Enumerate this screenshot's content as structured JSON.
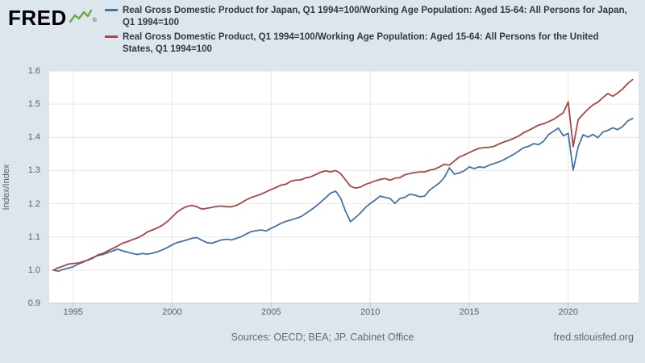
{
  "brand": {
    "logo_text": "FRED",
    "registered": "®"
  },
  "legend": [
    {
      "label": "Real Gross Domestic Product for Japan, Q1 1994=100/Working Age Population: Aged 15-64: All Persons for Japan, Q1 1994=100",
      "color": "#4572a7"
    },
    {
      "label": "Real Gross Domestic Product, Q1 1994=100/Working Age Population: Aged 15-64: All Persons for the United States, Q1 1994=100",
      "color": "#aa4643"
    }
  ],
  "footer": {
    "sources": "Sources: OECD; BEA; JP. Cabinet Office",
    "site": "fred.stlouisfed.org"
  },
  "colors": {
    "background": "#dde5ed",
    "plot_background": "#ffffff",
    "grid": "#e4e7ea",
    "axis": "#c0c8cf",
    "japan_line": "#4572a7",
    "us_line": "#aa4643",
    "logo_spark": "#6aaa43"
  },
  "chart_data": {
    "type": "line",
    "title": "",
    "xlabel": "",
    "ylabel": "Index/Index",
    "grid": true,
    "legend_position": "top",
    "xlim": [
      1993.75,
      2023.55
    ],
    "ylim": [
      0.9,
      1.6
    ],
    "x_start": 1994.0,
    "x_step": 0.25,
    "xticks": [
      1995,
      2000,
      2005,
      2010,
      2015,
      2020
    ],
    "xtick_labels": [
      "1995",
      "2000",
      "2005",
      "2010",
      "2015",
      "2020"
    ],
    "yticks": [
      0.9,
      1.0,
      1.1,
      1.2,
      1.3,
      1.4,
      1.5,
      1.6
    ],
    "ytick_labels": [
      "0.9",
      "1.0",
      "1.1",
      "1.2",
      "1.3",
      "1.4",
      "1.5",
      "1.6"
    ],
    "series": [
      {
        "id": "japan",
        "name": "Japan (Real GDP / Working Age Population, Q1 1994=100)",
        "color": "#4572a7",
        "values": [
          1.0,
          0.997,
          1.002,
          1.006,
          1.01,
          1.018,
          1.024,
          1.031,
          1.038,
          1.044,
          1.047,
          1.053,
          1.058,
          1.063,
          1.058,
          1.054,
          1.05,
          1.047,
          1.05,
          1.048,
          1.051,
          1.055,
          1.061,
          1.068,
          1.076,
          1.083,
          1.087,
          1.091,
          1.096,
          1.098,
          1.09,
          1.083,
          1.081,
          1.086,
          1.091,
          1.093,
          1.091,
          1.096,
          1.101,
          1.109,
          1.116,
          1.119,
          1.121,
          1.118,
          1.126,
          1.133,
          1.141,
          1.147,
          1.151,
          1.156,
          1.161,
          1.171,
          1.181,
          1.192,
          1.205,
          1.218,
          1.232,
          1.238,
          1.218,
          1.178,
          1.146,
          1.158,
          1.172,
          1.188,
          1.201,
          1.211,
          1.223,
          1.219,
          1.216,
          1.201,
          1.216,
          1.219,
          1.229,
          1.226,
          1.221,
          1.223,
          1.241,
          1.252,
          1.263,
          1.28,
          1.308,
          1.289,
          1.293,
          1.299,
          1.311,
          1.306,
          1.311,
          1.309,
          1.316,
          1.321,
          1.326,
          1.333,
          1.341,
          1.349,
          1.359,
          1.369,
          1.373,
          1.381,
          1.378,
          1.388,
          1.408,
          1.418,
          1.428,
          1.405,
          1.412,
          1.301,
          1.372,
          1.408,
          1.401,
          1.409,
          1.399,
          1.416,
          1.421,
          1.429,
          1.423,
          1.433,
          1.449,
          1.457
        ]
      },
      {
        "id": "united-states",
        "name": "United States (Real GDP / Working Age Population, Q1 1994=100)",
        "color": "#aa4643",
        "values": [
          1.0,
          1.007,
          1.012,
          1.018,
          1.02,
          1.021,
          1.026,
          1.03,
          1.036,
          1.046,
          1.05,
          1.058,
          1.065,
          1.073,
          1.081,
          1.086,
          1.092,
          1.097,
          1.105,
          1.115,
          1.121,
          1.127,
          1.135,
          1.146,
          1.16,
          1.175,
          1.185,
          1.192,
          1.195,
          1.191,
          1.184,
          1.186,
          1.189,
          1.192,
          1.193,
          1.191,
          1.191,
          1.195,
          1.203,
          1.212,
          1.219,
          1.224,
          1.229,
          1.236,
          1.243,
          1.249,
          1.256,
          1.259,
          1.268,
          1.271,
          1.272,
          1.278,
          1.281,
          1.288,
          1.295,
          1.299,
          1.296,
          1.3,
          1.291,
          1.272,
          1.253,
          1.247,
          1.25,
          1.258,
          1.263,
          1.269,
          1.273,
          1.276,
          1.271,
          1.277,
          1.279,
          1.287,
          1.291,
          1.294,
          1.296,
          1.296,
          1.301,
          1.304,
          1.311,
          1.319,
          1.316,
          1.329,
          1.341,
          1.347,
          1.354,
          1.361,
          1.367,
          1.369,
          1.37,
          1.373,
          1.38,
          1.386,
          1.391,
          1.397,
          1.404,
          1.414,
          1.421,
          1.429,
          1.437,
          1.441,
          1.447,
          1.454,
          1.464,
          1.474,
          1.507,
          1.372,
          1.453,
          1.47,
          1.485,
          1.498,
          1.506,
          1.52,
          1.532,
          1.524,
          1.534,
          1.546,
          1.562,
          1.574
        ]
      }
    ]
  }
}
